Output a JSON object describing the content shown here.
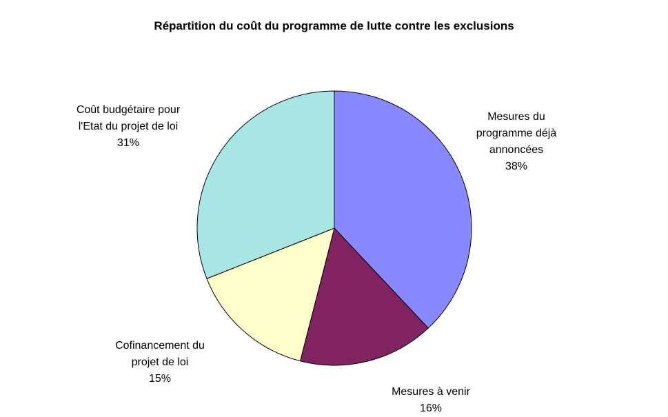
{
  "chart_data": {
    "type": "pie",
    "title": "Répartition du coût du programme de lutte contre les exclusions",
    "slices": [
      {
        "label": [
          "Mesures du",
          "programme déjà",
          "annoncées"
        ],
        "percent_label": "38%",
        "value": 38,
        "color": "#8888ff"
      },
      {
        "label": [
          "Mesures à venir"
        ],
        "percent_label": "16%",
        "value": 16,
        "color": "#822361"
      },
      {
        "label": [
          "Cofinancement du",
          "projet de loi"
        ],
        "percent_label": "15%",
        "value": 15,
        "color": "#ffffcc"
      },
      {
        "label": [
          "Coût budgétaire pour",
          "l'Etat du projet de loi"
        ],
        "percent_label": "31%",
        "value": 31,
        "color": "#a8e6e6"
      }
    ]
  }
}
